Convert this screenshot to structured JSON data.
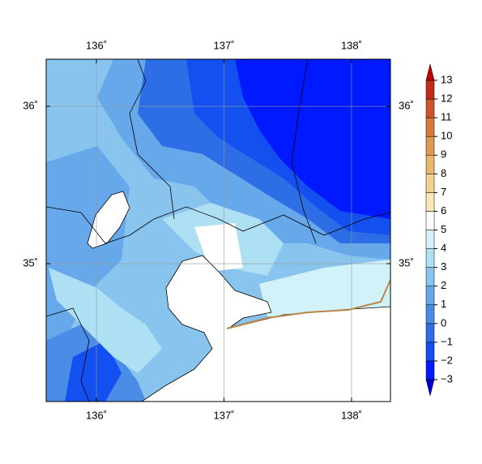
{
  "map": {
    "lonlim": [
      135.606,
      138.305
    ],
    "latlim": [
      34.124,
      36.299
    ],
    "lon_ticks": [
      {
        "value": 136,
        "label": "136˚"
      },
      {
        "value": 137,
        "label": "137˚"
      },
      {
        "value": 138,
        "label": "138˚"
      }
    ],
    "lat_ticks": [
      {
        "value": 36,
        "label": "36˚"
      },
      {
        "value": 35,
        "label": "35˚"
      }
    ],
    "grid": true,
    "colorbar": {
      "lim": [
        -3,
        13
      ],
      "ticks": [
        {
          "value": -3,
          "label": "−3"
        },
        {
          "value": -2,
          "label": "−2"
        },
        {
          "value": -1,
          "label": "−1"
        },
        0,
        1,
        2,
        3,
        4,
        5,
        6,
        7,
        8,
        9,
        10,
        11,
        12,
        13
      ],
      "colors": [
        "#0019ff",
        "#1450f0",
        "#2d6ee6",
        "#4a8ce6",
        "#66a8ea",
        "#88c4ee",
        "#aee0f4",
        "#d2f2fa",
        "#ffffff",
        "#f9e9b8",
        "#f2d290",
        "#e8b86a",
        "#de9a52",
        "#d67a3e",
        "#cc552a",
        "#c42c1a"
      ],
      "under_color": "#0000cd",
      "over_color": "#c00000"
    }
  }
}
